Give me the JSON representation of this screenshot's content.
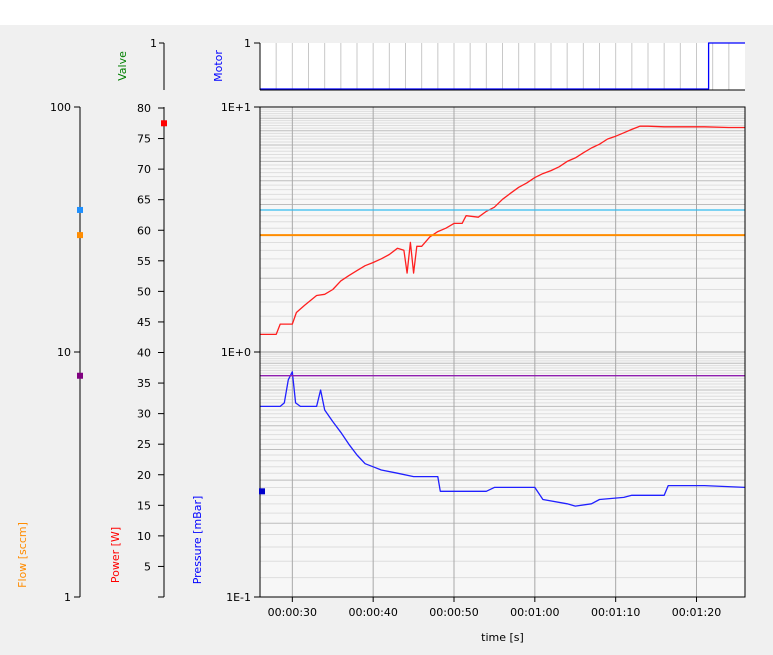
{
  "chart_data": {
    "type": "line",
    "xlabel": "time [s]",
    "x_ticks": [
      "00:00:30",
      "00:00:40",
      "00:00:50",
      "00:01:00",
      "00:01:10",
      "00:01:20"
    ],
    "xlim": [
      "00:00:26",
      "00:01:26"
    ],
    "axes": {
      "valve": {
        "label": "Valve",
        "tick": "1",
        "color": "#008000"
      },
      "motor": {
        "label": "Motor",
        "tick": "1",
        "color": "#0000ff"
      },
      "flow": {
        "label": "Flow [sccm]",
        "ticks": [
          "1",
          "10",
          "100"
        ],
        "scale": "log",
        "ylim": [
          1,
          100
        ],
        "color": "#ff8c00"
      },
      "power": {
        "label": "Power [W]",
        "ticks": [
          "5",
          "10",
          "15",
          "20",
          "25",
          "30",
          "35",
          "40",
          "45",
          "50",
          "55",
          "60",
          "65",
          "70",
          "75",
          "80"
        ],
        "ylim": [
          0,
          80
        ],
        "color": "#ff0000"
      },
      "pressure": {
        "label": "Pressure [mBar]",
        "ticks": [
          "1E-1",
          "1E+0",
          "1E+1"
        ],
        "scale": "log",
        "ylim": [
          0.1,
          10
        ],
        "color": "#0000ff"
      }
    },
    "markers": {
      "flow_a": {
        "axis": "flow",
        "value": 30,
        "color": "#ff8c00"
      },
      "flow_b": {
        "axis": "flow",
        "value": 38,
        "color": "#1e90ff"
      },
      "flow_c": {
        "axis": "flow",
        "value": 8,
        "color": "#800080"
      },
      "power": {
        "axis": "power",
        "value": 77.5,
        "color": "#ff0000"
      },
      "pressure": {
        "axis": "pressure",
        "value": 0.27,
        "color": "#0000cc"
      }
    },
    "series": [
      {
        "id": "red",
        "color": "#ff2020",
        "axis": "pressure",
        "points": [
          [
            0,
            1.18
          ],
          [
            2,
            1.18
          ],
          [
            2.5,
            1.3
          ],
          [
            4,
            1.3
          ],
          [
            4.5,
            1.45
          ],
          [
            5.5,
            1.55
          ],
          [
            7,
            1.7
          ],
          [
            8,
            1.72
          ],
          [
            9,
            1.8
          ],
          [
            10,
            1.95
          ],
          [
            11,
            2.05
          ],
          [
            12,
            2.15
          ],
          [
            13,
            2.25
          ],
          [
            14,
            2.32
          ],
          [
            15,
            2.4
          ],
          [
            16,
            2.5
          ],
          [
            17,
            2.65
          ],
          [
            17.8,
            2.6
          ],
          [
            18.2,
            2.1
          ],
          [
            18.6,
            2.8
          ],
          [
            19,
            2.1
          ],
          [
            19.4,
            2.7
          ],
          [
            20,
            2.7
          ],
          [
            21,
            2.95
          ],
          [
            22,
            3.1
          ],
          [
            23,
            3.2
          ],
          [
            24,
            3.35
          ],
          [
            25,
            3.35
          ],
          [
            25.5,
            3.6
          ],
          [
            27,
            3.55
          ],
          [
            28,
            3.75
          ],
          [
            29,
            3.9
          ],
          [
            30,
            4.2
          ],
          [
            31,
            4.45
          ],
          [
            32,
            4.7
          ],
          [
            33,
            4.9
          ],
          [
            34,
            5.15
          ],
          [
            35,
            5.35
          ],
          [
            36,
            5.5
          ],
          [
            37,
            5.7
          ],
          [
            38,
            6.0
          ],
          [
            39,
            6.2
          ],
          [
            40,
            6.5
          ],
          [
            41,
            6.8
          ],
          [
            42,
            7.05
          ],
          [
            43,
            7.4
          ],
          [
            44,
            7.6
          ],
          [
            45,
            7.85
          ],
          [
            46,
            8.1
          ],
          [
            47,
            8.35
          ],
          [
            48,
            8.35
          ],
          [
            50,
            8.3
          ],
          [
            52,
            8.3
          ],
          [
            55,
            8.3
          ],
          [
            58,
            8.25
          ],
          [
            60,
            8.25
          ]
        ]
      },
      {
        "id": "blue",
        "color": "#2020ff",
        "axis": "pressure",
        "points": [
          [
            0,
            0.6
          ],
          [
            2.5,
            0.6
          ],
          [
            3,
            0.62
          ],
          [
            3.5,
            0.77
          ],
          [
            4,
            0.83
          ],
          [
            4.4,
            0.62
          ],
          [
            5,
            0.6
          ],
          [
            6,
            0.6
          ],
          [
            7,
            0.6
          ],
          [
            7.5,
            0.7
          ],
          [
            8,
            0.58
          ],
          [
            9,
            0.52
          ],
          [
            10,
            0.47
          ],
          [
            11,
            0.42
          ],
          [
            12,
            0.38
          ],
          [
            13,
            0.35
          ],
          [
            14,
            0.34
          ],
          [
            15,
            0.33
          ],
          [
            17,
            0.32
          ],
          [
            19,
            0.31
          ],
          [
            22,
            0.31
          ],
          [
            22.3,
            0.27
          ],
          [
            25,
            0.27
          ],
          [
            28,
            0.27
          ],
          [
            29,
            0.28
          ],
          [
            34,
            0.28
          ],
          [
            35,
            0.25
          ],
          [
            38,
            0.24
          ],
          [
            39,
            0.235
          ],
          [
            41,
            0.24
          ],
          [
            42,
            0.25
          ],
          [
            45,
            0.255
          ],
          [
            46,
            0.26
          ],
          [
            50,
            0.26
          ],
          [
            50.5,
            0.285
          ],
          [
            55,
            0.285
          ],
          [
            60,
            0.28
          ]
        ]
      },
      {
        "id": "orange",
        "color": "#ff8c00",
        "axis": "flow",
        "points": [
          [
            0,
            30
          ],
          [
            60,
            30
          ]
        ]
      },
      {
        "id": "cyan",
        "color": "#33bbee",
        "axis": "flow",
        "points": [
          [
            0,
            38
          ],
          [
            60,
            38
          ]
        ]
      },
      {
        "id": "purple",
        "color": "#9020b0",
        "axis": "flow",
        "points": [
          [
            0,
            8
          ],
          [
            60,
            8
          ]
        ]
      },
      {
        "id": "motor",
        "color": "#0000ff",
        "axis": "motor",
        "points": [
          [
            0,
            0
          ],
          [
            55.5,
            0
          ],
          [
            55.5,
            1
          ],
          [
            60,
            1
          ]
        ]
      }
    ],
    "grid": true,
    "legend": "none"
  }
}
